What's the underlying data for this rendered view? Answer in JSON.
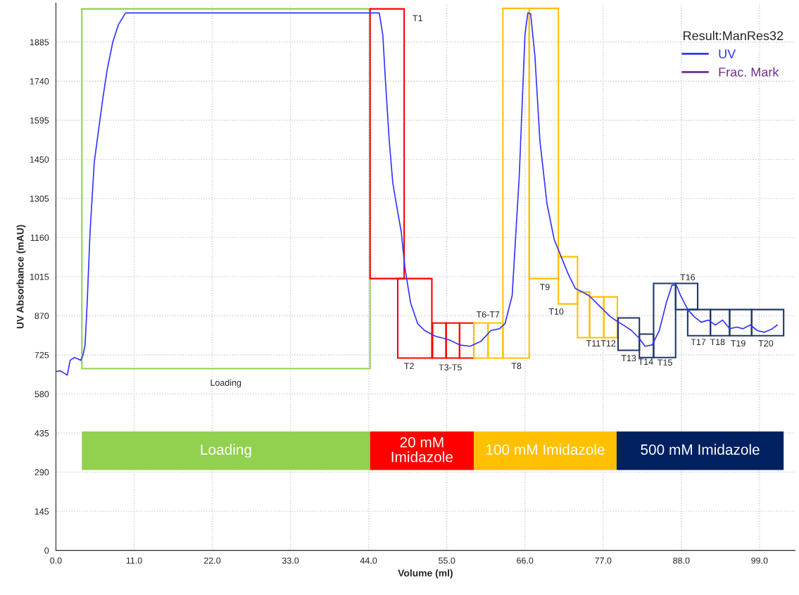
{
  "chart_data": {
    "type": "line",
    "xlabel": "Volume (ml)",
    "ylabel": "UV Absorbance (mAU)",
    "legend_title": "Result:ManRes32",
    "legend": "top right",
    "grid": true,
    "line_style": "solid",
    "marker": "none",
    "xlim": [
      0,
      104
    ],
    "ylim": [
      0,
      2030
    ],
    "xticks": [
      {
        "value": 0,
        "label": "0.0"
      },
      {
        "value": 11,
        "label": "11.0"
      },
      {
        "value": 22,
        "label": "22.0"
      },
      {
        "value": 33,
        "label": "33.0"
      },
      {
        "value": 44,
        "label": "44.0"
      },
      {
        "value": 55,
        "label": "55.0"
      },
      {
        "value": 66,
        "label": "66.0"
      },
      {
        "value": 77,
        "label": "77.0"
      },
      {
        "value": 88,
        "label": "88.0"
      },
      {
        "value": 99,
        "label": "99.0"
      }
    ],
    "yticks": [
      0,
      145,
      290,
      435,
      580,
      725,
      870,
      1015,
      1160,
      1305,
      1450,
      1595,
      1740,
      1885
    ],
    "series": [
      {
        "name": "UV",
        "color": "#3333ff",
        "x": [
          0,
          0.6,
          1.1,
          1.6,
          2.0,
          2.6,
          3.1,
          3.5,
          3.8,
          4.1,
          4.4,
          4.8,
          5.4,
          6.0,
          6.6,
          7.2,
          8.0,
          8.8,
          9.8,
          10.5,
          45.5,
          46.0,
          46.4,
          46.9,
          47.4,
          47.9,
          48.6,
          49.1,
          49.9,
          50.9,
          51.9,
          53.4,
          55.3,
          56.8,
          58.3,
          59.8,
          61.2,
          62.4,
          63.2,
          64.2,
          65.2,
          66.0,
          66.4,
          66.8,
          67.4,
          68.1,
          69.1,
          70.1,
          71.1,
          72.1,
          73.1,
          74.1,
          75.0,
          76.0,
          77.0,
          78.0,
          79.0,
          80.0,
          81.0,
          82.0,
          82.9,
          83.9,
          84.9,
          85.9,
          86.7,
          87.3,
          87.9,
          88.9,
          89.8,
          90.8,
          91.8,
          92.8,
          93.8,
          94.8,
          95.8,
          96.7,
          97.7,
          98.7,
          99.7,
          100.7,
          101.5
        ],
        "values": [
          663,
          666,
          658,
          650,
          705,
          715,
          710,
          705,
          723,
          762,
          919,
          1180,
          1441,
          1559,
          1676,
          1781,
          1885,
          1950,
          1993,
          1993,
          1993,
          1911,
          1728,
          1520,
          1363,
          1285,
          1180,
          1050,
          919,
          841,
          815,
          794,
          781,
          762,
          757,
          775,
          815,
          822,
          841,
          945,
          1389,
          1911,
          1993,
          1990,
          1833,
          1520,
          1285,
          1154,
          1089,
          1024,
          971,
          958,
          945,
          919,
          893,
          867,
          849,
          833,
          815,
          789,
          757,
          762,
          815,
          919,
          984,
          984,
          945,
          893,
          867,
          846,
          854,
          836,
          854,
          822,
          828,
          822,
          836,
          815,
          809,
          820,
          836
        ]
      },
      {
        "name": "Frac. Mark",
        "color": "#6f2c91"
      }
    ],
    "bands": [
      {
        "axis": "x",
        "from": 3.65,
        "to": 44.2,
        "color": "#92d050",
        "label": "Loading"
      },
      {
        "axis": "x",
        "from": 44.2,
        "to": 58.8,
        "color": "#ff0000",
        "label": "20 mM\nImidazole"
      },
      {
        "axis": "x",
        "from": 58.8,
        "to": 78.9,
        "color": "#ffc000",
        "label": "100 mM Imidazole"
      },
      {
        "axis": "x",
        "from": 78.9,
        "to": 102.4,
        "color": "#002060",
        "label": "500 mM Imidazole"
      }
    ],
    "annotations": [
      "Loading",
      "T1",
      "T2",
      "T3-T5",
      "T6-T7",
      "T8",
      "T9",
      "T10",
      "T11T12",
      "T13",
      "T14",
      "T15",
      "T16",
      "T17",
      "T18",
      "T19",
      "T20"
    ]
  }
}
